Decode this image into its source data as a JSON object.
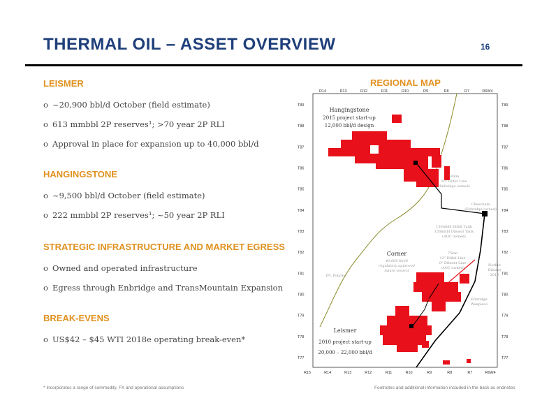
{
  "header": {
    "title": "THERMAL OIL – ASSET OVERVIEW",
    "page_number": "16"
  },
  "sections": {
    "leismer": {
      "heading": "LEISMER",
      "bullets": [
        "~20,900 bbl/d October (field estimate)",
        "613 mmbbl 2P reserves¹; >70 year 2P RLI",
        "Approval in place for expansion up to 40,000 bbl/d"
      ]
    },
    "hangingstone": {
      "heading": "HANGINGSTONE",
      "bullets": [
        "~9,500 bbl/d October (field estimate)",
        "222 mmbbl 2P reserves¹; ~50 year 2P RLI"
      ]
    },
    "infrastructure": {
      "heading": "STRATEGIC INFRASTRUCTURE AND MARKET EGRESS",
      "bullets": [
        "Owned and operated infrastructure",
        "Egress through Enbridge and TransMountain Expansion"
      ]
    },
    "breakevens": {
      "heading": "BREAK-EVENS",
      "bullets": [
        "US$42 – $45 WTI 2018e operating break-even*"
      ]
    }
  },
  "map": {
    "title": "REGIONAL MAP",
    "range_labels_top": [
      "R14",
      "R13",
      "R12",
      "R11",
      "R10",
      "R9",
      "R8",
      "R7",
      "R6W4"
    ],
    "range_labels_bottom": [
      "R15",
      "R14",
      "R13",
      "R12",
      "R11",
      "R10",
      "R9",
      "R8",
      "R7",
      "R6W4"
    ],
    "township_labels_left": [
      "T89",
      "T88",
      "T87",
      "T86",
      "T85",
      "T84",
      "T83",
      "T82",
      "T81",
      "T80",
      "T79",
      "T78",
      "T77"
    ],
    "township_labels_right": [
      "T89",
      "T88",
      "T87",
      "T86",
      "T85",
      "T84",
      "T83",
      "T82",
      "T81",
      "T80",
      "T79",
      "T78",
      "T77"
    ],
    "hangingstone": {
      "name": "Hangingstone",
      "line1": "2015 project start-up",
      "line2": "12,000 bbl/d design"
    },
    "pipeline_16": [
      "50km",
      "16\" Dilbit Line",
      "(Enbridge owned)"
    ],
    "cheecham": [
      "Cheecham",
      "(Enbridge owned)"
    ],
    "tanks": [
      "150mbbl Dilbit Tank",
      "150mbbl Diluent Tank",
      "(AOC owned)"
    ],
    "corner": {
      "name": "Corner",
      "lines": [
        "40,000 bbl/d",
        "regulatory approved",
        "future project"
      ]
    },
    "pipeline_12": [
      "75km",
      "12\" Dilbit Line",
      "8\" Diluent Line",
      "(AOC owned)"
    ],
    "norlite": [
      "Norlite",
      "Diluent",
      "2018"
    ],
    "ipl": "IPL Polaris",
    "waupisoo": [
      "Enbridge",
      "Waupisoo"
    ],
    "leismer": {
      "name": "Leismer",
      "line1": "2010 project start-up",
      "line2": "20,000 – 22,000 bbl/d"
    },
    "colors": {
      "asset": "#e8101a",
      "road": "#8a8a2a",
      "pipeline": "#000000"
    }
  },
  "footnotes": {
    "left": "* Incorporates a range of commodity, FX and operational assumptions",
    "right": "Footnotes and additional information included in the back as endnotes"
  }
}
